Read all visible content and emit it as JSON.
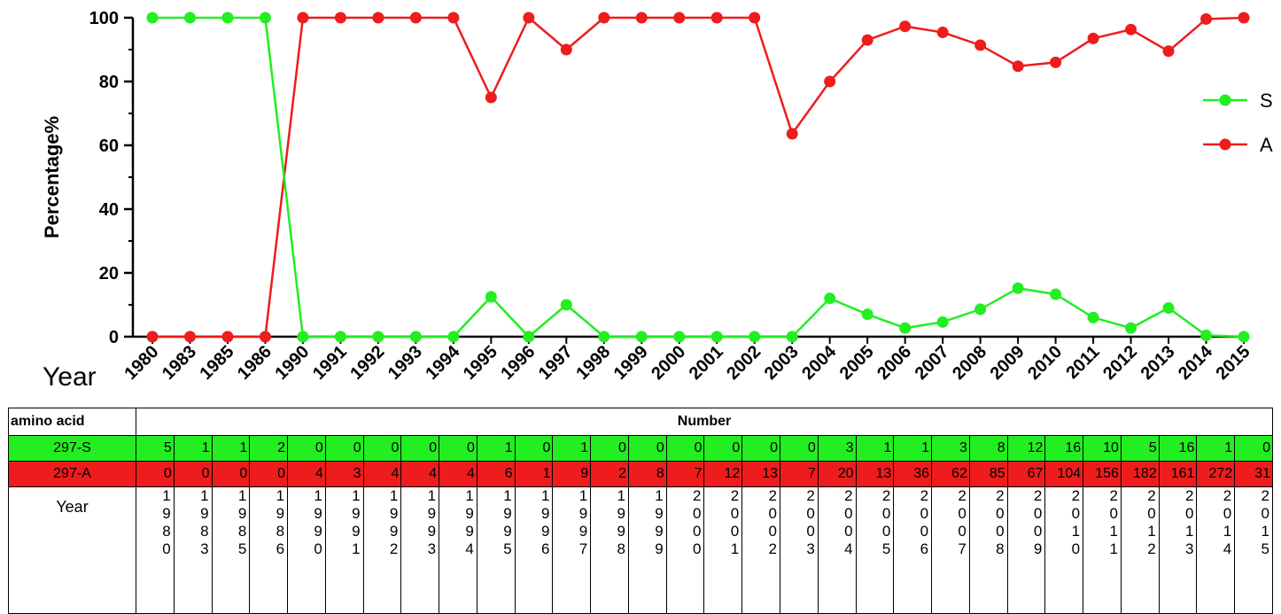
{
  "chart_data": {
    "type": "line",
    "ylabel": "Percentage%",
    "xlabel": "Year",
    "ylim": [
      0,
      100
    ],
    "yticks": [
      "0",
      "20",
      "40",
      "60",
      "80",
      "100"
    ],
    "categories": [
      "1980",
      "1983",
      "1985",
      "1986",
      "1990",
      "1991",
      "1992",
      "1993",
      "1994",
      "1995",
      "1996",
      "1997",
      "1998",
      "1999",
      "2000",
      "2001",
      "2002",
      "2003",
      "2004",
      "2005",
      "2006",
      "2007",
      "2008",
      "2009",
      "2010",
      "2011",
      "2012",
      "2013",
      "2014",
      "2015"
    ],
    "legend_position": "right",
    "series": [
      {
        "name": "S",
        "color": "#22ee22",
        "values": [
          100,
          100,
          100,
          100,
          0,
          0,
          0,
          0,
          0,
          12.5,
          0,
          10,
          0,
          0,
          0,
          0,
          0,
          0,
          12,
          7,
          2.7,
          4.6,
          8.6,
          15.2,
          13.3,
          6,
          2.7,
          9,
          0.4,
          0
        ]
      },
      {
        "name": "A",
        "color": "#ee1c1c",
        "values": [
          0,
          0,
          0,
          0,
          100,
          100,
          100,
          100,
          100,
          75,
          100,
          90,
          100,
          100,
          100,
          100,
          100,
          63.6,
          80,
          93,
          97.3,
          95.4,
          91.4,
          84.8,
          86,
          93.5,
          96.3,
          89.5,
          99.6,
          100
        ]
      }
    ]
  },
  "table": {
    "header_label": "amino acid",
    "header_number": "Number",
    "rows": [
      {
        "label": "297-S",
        "values": [
          "5",
          "1",
          "1",
          "2",
          "0",
          "0",
          "0",
          "0",
          "0",
          "1",
          "0",
          "1",
          "0",
          "0",
          "0",
          "0",
          "0",
          "0",
          "3",
          "1",
          "1",
          "3",
          "8",
          "12",
          "16",
          "10",
          "5",
          "16",
          "1",
          "0"
        ]
      },
      {
        "label": "297-A",
        "values": [
          "0",
          "0",
          "0",
          "0",
          "4",
          "3",
          "4",
          "4",
          "4",
          "6",
          "1",
          "9",
          "2",
          "8",
          "7",
          "12",
          "13",
          "7",
          "20",
          "13",
          "36",
          "62",
          "85",
          "67",
          "104",
          "156",
          "182",
          "161",
          "272",
          "31"
        ]
      }
    ],
    "year_label": "Year"
  }
}
